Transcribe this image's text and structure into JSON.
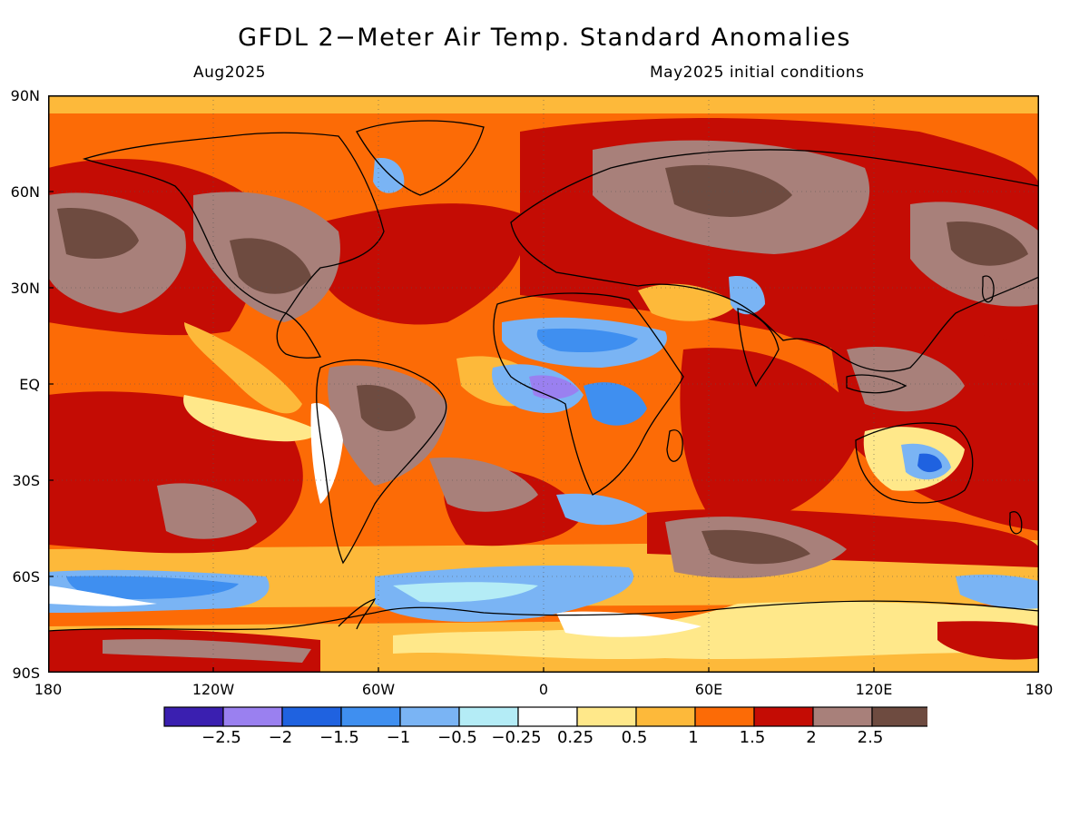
{
  "title": "GFDL 2−Meter Air Temp. Standard Anomalies",
  "valid_month": "Aug2025",
  "init_conditions": "May2025 initial conditions",
  "lat_labels": [
    "90N",
    "60N",
    "30N",
    "EQ",
    "30S",
    "60S",
    "90S"
  ],
  "lon_labels": [
    "180",
    "120W",
    "60W",
    "0",
    "60E",
    "120E",
    "180"
  ],
  "colorbar": {
    "colors": [
      "#3a1fb0",
      "#9a80f0",
      "#1f62e0",
      "#3f8ff0",
      "#7ab4f4",
      "#b4ecf6",
      "#ffffff",
      "#ffe88a",
      "#fdb93a",
      "#fc6b06",
      "#c40c04",
      "#a8807a",
      "#6e4b40"
    ],
    "labels": [
      "−2.5",
      "−2",
      "−1.5",
      "−1",
      "−0.5",
      "−0.25",
      "0.25",
      "0.5",
      "1",
      "1.5",
      "2",
      "2.5"
    ]
  }
}
